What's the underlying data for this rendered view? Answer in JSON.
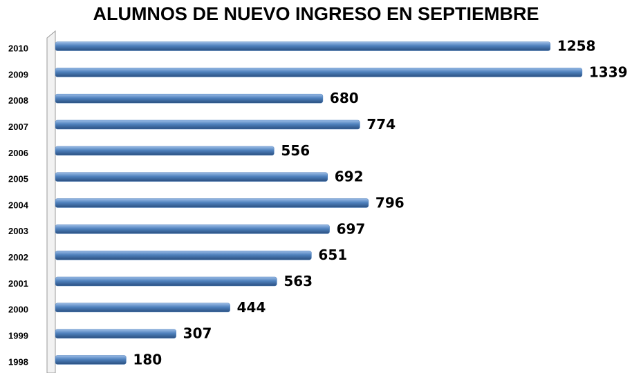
{
  "chart_data": {
    "type": "bar",
    "orientation": "horizontal",
    "title": "ALUMNOS DE NUEVO INGRESO EN SEPTIEMBRE",
    "categories": [
      "2010",
      "2009",
      "2008",
      "2007",
      "2006",
      "2005",
      "2004",
      "2003",
      "2002",
      "2001",
      "2000",
      "1999",
      "1998"
    ],
    "values": [
      1258,
      1339,
      680,
      774,
      556,
      692,
      796,
      697,
      651,
      563,
      444,
      307,
      180
    ],
    "color": "#4f81bd"
  }
}
